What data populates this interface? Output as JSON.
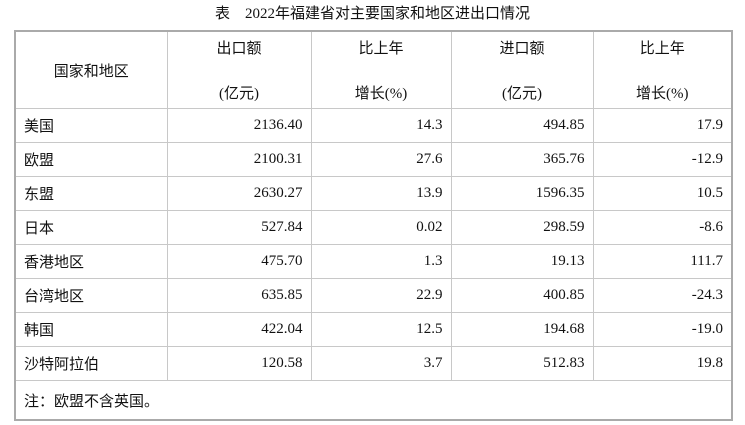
{
  "title": "表　2022年福建省对主要国家和地区进出口情况",
  "header": {
    "region": "国家和地区",
    "columns": [
      {
        "top": "出口额",
        "bottom": "(亿元)"
      },
      {
        "top": "比上年",
        "bottom": "增长(%)"
      },
      {
        "top": "进口额",
        "bottom": "(亿元)"
      },
      {
        "top": "比上年",
        "bottom": "增长(%)"
      }
    ]
  },
  "table": {
    "rows": [
      [
        "美国",
        "2136.40",
        "14.3",
        "494.85",
        "17.9"
      ],
      [
        "欧盟",
        "2100.31",
        "27.6",
        "365.76",
        "-12.9"
      ],
      [
        "东盟",
        "2630.27",
        "13.9",
        "1596.35",
        "10.5"
      ],
      [
        "日本",
        "527.84",
        "0.02",
        "298.59",
        "-8.6"
      ],
      [
        "香港地区",
        "475.70",
        "1.3",
        "19.13",
        "111.7"
      ],
      [
        "台湾地区",
        "635.85",
        "22.9",
        "400.85",
        "-24.3"
      ],
      [
        "韩国",
        "422.04",
        "12.5",
        "194.68",
        "-19.0"
      ],
      [
        "沙特阿拉伯",
        "120.58",
        "3.7",
        "512.83",
        "19.8"
      ]
    ]
  },
  "note": "注：欧盟不含英国。"
}
